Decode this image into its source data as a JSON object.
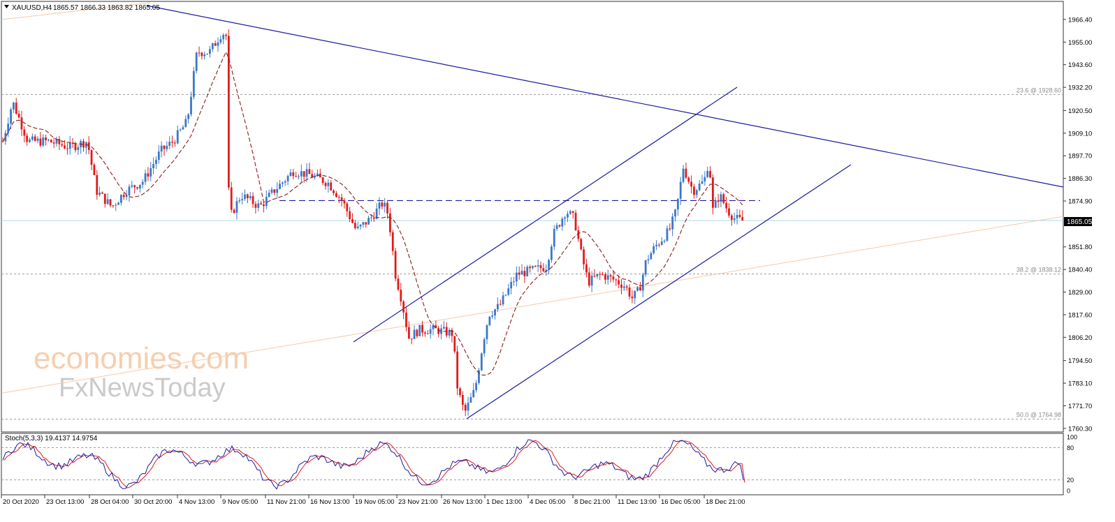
{
  "header": {
    "symbol": "XAUUSD,H4",
    "ohlc": "1865.57 1866.33 1863.82 1865.05",
    "triangle_icon": "triangle-down-icon"
  },
  "indicator": {
    "label": "Stoch(5,3,3) 19.4137 14.9754",
    "levels": [
      100,
      80,
      20,
      0
    ]
  },
  "watermark": {
    "line1": "economies.com",
    "line2": "FxNewsToday"
  },
  "colors": {
    "bull": "#3a78c9",
    "bear": "#e01b1b",
    "ma": "#8b1a1a",
    "trend": "#1a1aa0",
    "fib_line": "#f7c9a6",
    "price_line": "#a7d8e8",
    "grid_dash": "#9a9a9a",
    "stoch_main": "#1a1aa0",
    "stoch_signal": "#e01b1b"
  },
  "chart_data": {
    "type": "candlestick",
    "symbol": "XAUUSD",
    "timeframe": "H4",
    "y_ticks": [
      "1966.40",
      "1955.00",
      "1943.60",
      "1932.20",
      "1920.50",
      "1909.10",
      "1897.70",
      "1886.30",
      "1874.90",
      "1865.05",
      "1851.80",
      "1840.40",
      "1829.00",
      "1817.60",
      "1806.20",
      "1794.50",
      "1783.10",
      "1771.70",
      "1760.30"
    ],
    "y_range": [
      1758.5,
      1975.5
    ],
    "x_ticks": [
      "20 Oct 2020",
      "23 Oct 13:00",
      "28 Oct 04:00",
      "30 Oct 20:00",
      "4 Nov 13:00",
      "9 Nov 05:00",
      "11 Nov 21:00",
      "16 Nov 13:00",
      "19 Nov 05:00",
      "23 Nov 21:00",
      "26 Nov 13:00",
      "1 Dec 13:00",
      "4 Dec 05:00",
      "8 Dec 21:00",
      "11 Dec 13:00",
      "16 Dec 05:00",
      "18 Dec 21:00"
    ],
    "current_price": "1865.05",
    "fib_levels": [
      {
        "label": "23.6 @ 1928.60",
        "value": 1928.6
      },
      {
        "label": "38.2 @ 1838.12",
        "value": 1838.12
      },
      {
        "label": "50.0 @ 1764.98",
        "value": 1764.98
      }
    ],
    "resistance_level": 1875.1,
    "series_key_points": [
      {
        "date": "20 Oct 2020",
        "close": 1905
      },
      {
        "date": "21 Oct",
        "close": 1925
      },
      {
        "date": "28 Oct 04:00",
        "close": 1875
      },
      {
        "date": "30 Oct",
        "close": 1880
      },
      {
        "date": "6 Nov",
        "close": 1958
      },
      {
        "date": "9 Nov 05:00",
        "close": 1868
      },
      {
        "date": "11 Nov 21:00",
        "close": 1875
      },
      {
        "date": "16 Nov 13:00",
        "close": 1888
      },
      {
        "date": "19 Nov 05:00",
        "close": 1866
      },
      {
        "date": "23 Nov 21:00",
        "close": 1838
      },
      {
        "date": "24 Nov",
        "close": 1805
      },
      {
        "date": "30 Nov",
        "close": 1765
      },
      {
        "date": "2 Dec",
        "close": 1815
      },
      {
        "date": "8 Dec 21:00",
        "close": 1870
      },
      {
        "date": "11 Dec 13:00",
        "close": 1828
      },
      {
        "date": "17 Dec",
        "close": 1895
      },
      {
        "date": "18 Dec 21:00",
        "close": 1865.05
      }
    ],
    "stoch_last": {
      "k": 19.4137,
      "d": 14.9754
    }
  }
}
